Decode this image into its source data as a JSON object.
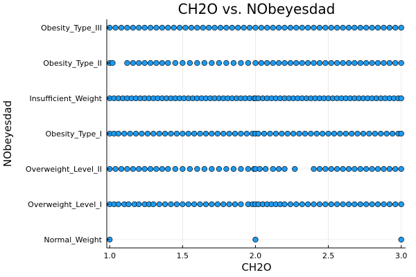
{
  "chart_data": {
    "type": "scatter",
    "title": "CH2O vs. NObeyesdad",
    "xlabel": "CH2O",
    "ylabel": "NObeyesdad",
    "xlim": [
      0.98,
      3.03
    ],
    "xticks": [
      "1.0",
      "1.5",
      "2.0",
      "2.5",
      "3.0"
    ],
    "xtick_values": [
      1.0,
      1.5,
      2.0,
      2.5,
      3.0
    ],
    "categories": [
      "Normal_Weight",
      "Overweight_Level_I",
      "Overweight_Level_II",
      "Obesity_Type_I",
      "Insufficient_Weight",
      "Obesity_Type_II",
      "Obesity_Type_III"
    ],
    "grid": true,
    "legend": "none",
    "marker_color": "#1f9bf0",
    "series": [
      {
        "category": "Normal_Weight",
        "x": [
          1.0,
          2.0,
          3.0
        ]
      },
      {
        "category": "Overweight_Level_I",
        "x": [
          1.0,
          1.03,
          1.06,
          1.1,
          1.13,
          1.17,
          1.2,
          1.24,
          1.27,
          1.3,
          1.34,
          1.38,
          1.42,
          1.46,
          1.5,
          1.54,
          1.58,
          1.62,
          1.66,
          1.7,
          1.74,
          1.78,
          1.82,
          1.86,
          1.9,
          1.95,
          1.98,
          2.0,
          2.02,
          2.05,
          2.08,
          2.11,
          2.14,
          2.17,
          2.2,
          2.24,
          2.28,
          2.32,
          2.36,
          2.4,
          2.44,
          2.48,
          2.52,
          2.56,
          2.6,
          2.64,
          2.68,
          2.72,
          2.76,
          2.8,
          2.84,
          2.88,
          2.92,
          2.96,
          3.0
        ]
      },
      {
        "category": "Overweight_Level_II",
        "x": [
          1.0,
          1.04,
          1.08,
          1.12,
          1.16,
          1.2,
          1.24,
          1.28,
          1.32,
          1.36,
          1.4,
          1.45,
          1.5,
          1.55,
          1.6,
          1.65,
          1.7,
          1.75,
          1.8,
          1.85,
          1.9,
          1.95,
          1.99,
          2.0,
          2.03,
          2.07,
          2.12,
          2.16,
          2.2,
          2.27,
          2.4,
          2.44,
          2.48,
          2.52,
          2.56,
          2.6,
          2.64,
          2.68,
          2.72,
          2.76,
          2.8,
          2.84,
          2.88,
          2.92,
          2.96,
          3.0
        ]
      },
      {
        "category": "Obesity_Type_I",
        "x": [
          1.0,
          1.03,
          1.06,
          1.1,
          1.14,
          1.18,
          1.22,
          1.26,
          1.3,
          1.34,
          1.38,
          1.42,
          1.46,
          1.5,
          1.54,
          1.58,
          1.62,
          1.66,
          1.7,
          1.74,
          1.78,
          1.82,
          1.86,
          1.9,
          1.94,
          1.98,
          2.0,
          2.02,
          2.06,
          2.1,
          2.14,
          2.18,
          2.22,
          2.26,
          2.3,
          2.34,
          2.38,
          2.42,
          2.46,
          2.5,
          2.54,
          2.58,
          2.62,
          2.66,
          2.7,
          2.74,
          2.78,
          2.82,
          2.86,
          2.9,
          2.94,
          2.98,
          3.0
        ]
      },
      {
        "category": "Insufficient_Weight",
        "x": [
          1.0,
          1.03,
          1.06,
          1.09,
          1.12,
          1.15,
          1.18,
          1.21,
          1.24,
          1.27,
          1.3,
          1.33,
          1.36,
          1.39,
          1.42,
          1.45,
          1.48,
          1.51,
          1.54,
          1.57,
          1.6,
          1.63,
          1.66,
          1.69,
          1.72,
          1.75,
          1.78,
          1.81,
          1.84,
          1.87,
          1.9,
          1.93,
          1.96,
          1.99,
          2.0,
          2.02,
          2.05,
          2.08,
          2.11,
          2.14,
          2.17,
          2.2,
          2.23,
          2.26,
          2.29,
          2.32,
          2.35,
          2.38,
          2.41,
          2.44,
          2.47,
          2.5,
          2.53,
          2.56,
          2.59,
          2.62,
          2.65,
          2.68,
          2.71,
          2.74,
          2.77,
          2.8,
          2.83,
          2.86,
          2.89,
          2.92,
          2.95,
          2.98,
          3.0
        ]
      },
      {
        "category": "Obesity_Type_II",
        "x": [
          1.0,
          1.02,
          1.12,
          1.16,
          1.2,
          1.24,
          1.28,
          1.32,
          1.36,
          1.4,
          1.45,
          1.5,
          1.55,
          1.6,
          1.65,
          1.7,
          1.75,
          1.8,
          1.85,
          1.9,
          1.95,
          2.0,
          2.04,
          2.08,
          2.12,
          2.16,
          2.2,
          2.24,
          2.28,
          2.32,
          2.36,
          2.4,
          2.44,
          2.48,
          2.52,
          2.56,
          2.6,
          2.64,
          2.68,
          2.72,
          2.76,
          2.8,
          2.84,
          2.88,
          2.92,
          2.96,
          3.0
        ]
      },
      {
        "category": "Obesity_Type_III",
        "x": [
          1.0,
          1.04,
          1.08,
          1.12,
          1.16,
          1.2,
          1.24,
          1.28,
          1.32,
          1.36,
          1.4,
          1.44,
          1.48,
          1.52,
          1.56,
          1.6,
          1.64,
          1.68,
          1.72,
          1.76,
          1.8,
          1.84,
          1.88,
          1.92,
          1.96,
          2.0,
          2.04,
          2.08,
          2.12,
          2.16,
          2.2,
          2.24,
          2.28,
          2.32,
          2.36,
          2.4,
          2.44,
          2.48,
          2.52,
          2.56,
          2.6,
          2.64,
          2.68,
          2.72,
          2.76,
          2.8,
          2.84,
          2.88,
          2.92,
          2.96,
          3.0
        ]
      }
    ]
  }
}
